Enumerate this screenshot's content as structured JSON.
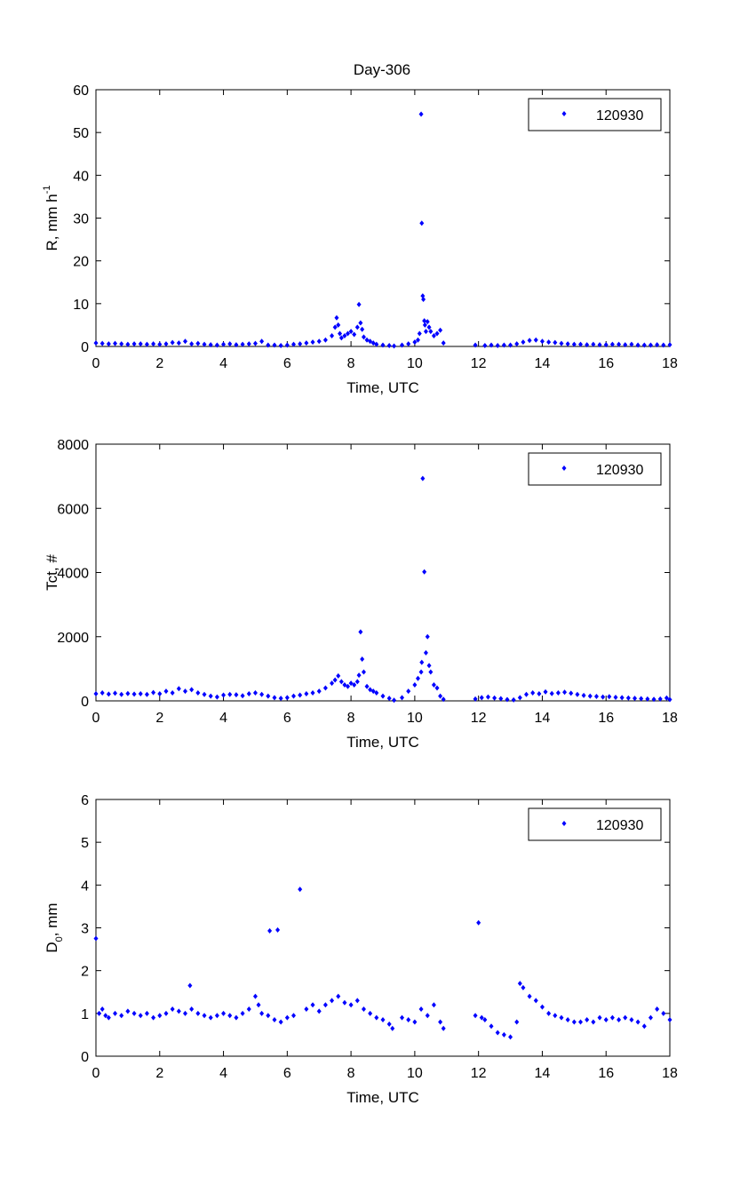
{
  "figure_title": "Day-306",
  "chart_data": [
    {
      "type": "scatter",
      "title": "Day-306",
      "xlabel": "Time, UTC",
      "ylabel_main": "R, mm h",
      "ylabel_sup": "-1",
      "xlim": [
        0,
        18
      ],
      "ylim": [
        0,
        60
      ],
      "xticks": [
        0,
        2,
        4,
        6,
        8,
        10,
        12,
        14,
        16,
        18
      ],
      "yticks": [
        0,
        10,
        20,
        30,
        40,
        50,
        60
      ],
      "grid": false,
      "legend_position": "top-right",
      "marker": "diamond",
      "color": "#0000ff",
      "series": [
        {
          "name": "120930",
          "x": [
            0.0,
            0.2,
            0.4,
            0.6,
            0.8,
            1.0,
            1.2,
            1.4,
            1.6,
            1.8,
            2.0,
            2.2,
            2.4,
            2.6,
            2.8,
            3.0,
            3.2,
            3.4,
            3.6,
            3.8,
            4.0,
            4.2,
            4.4,
            4.6,
            4.8,
            5.0,
            5.2,
            5.4,
            5.6,
            5.8,
            6.0,
            6.2,
            6.4,
            6.6,
            6.8,
            7.0,
            7.2,
            7.4,
            7.5,
            7.55,
            7.6,
            7.65,
            7.7,
            7.8,
            7.9,
            8.0,
            8.1,
            8.2,
            8.25,
            8.3,
            8.35,
            8.4,
            8.5,
            8.6,
            8.7,
            8.8,
            9.0,
            9.2,
            9.35,
            9.6,
            9.8,
            10.0,
            10.1,
            10.15,
            10.2,
            10.22,
            10.25,
            10.27,
            10.3,
            10.32,
            10.35,
            10.4,
            10.45,
            10.5,
            10.6,
            10.7,
            10.8,
            10.9,
            11.9,
            12.2,
            12.4,
            12.6,
            12.8,
            13.0,
            13.2,
            13.4,
            13.6,
            13.8,
            14.0,
            14.2,
            14.4,
            14.6,
            14.8,
            15.0,
            15.2,
            15.4,
            15.6,
            15.8,
            16.0,
            16.2,
            16.4,
            16.6,
            16.8,
            17.0,
            17.2,
            17.4,
            17.6,
            17.8,
            18.0
          ],
          "y": [
            0.8,
            0.7,
            0.6,
            0.7,
            0.6,
            0.5,
            0.6,
            0.6,
            0.5,
            0.6,
            0.5,
            0.6,
            0.9,
            0.8,
            1.2,
            0.6,
            0.7,
            0.5,
            0.4,
            0.3,
            0.5,
            0.6,
            0.4,
            0.5,
            0.6,
            0.7,
            1.2,
            0.3,
            0.3,
            0.2,
            0.3,
            0.5,
            0.6,
            0.8,
            1.0,
            1.2,
            1.5,
            2.5,
            4.5,
            6.7,
            5.0,
            3.0,
            2.0,
            2.5,
            3.0,
            3.5,
            2.8,
            4.5,
            9.8,
            5.5,
            4.0,
            2.2,
            1.5,
            1.2,
            0.8,
            0.5,
            0.3,
            0.2,
            0.1,
            0.3,
            0.6,
            1.0,
            1.5,
            3.0,
            54.3,
            28.8,
            11.8,
            11.0,
            6.0,
            5.0,
            3.5,
            5.8,
            4.5,
            3.5,
            2.5,
            3.0,
            3.8,
            0.8,
            0.3,
            0.2,
            0.3,
            0.2,
            0.3,
            0.3,
            0.6,
            1.0,
            1.4,
            1.5,
            1.2,
            1.0,
            0.9,
            0.7,
            0.6,
            0.5,
            0.5,
            0.4,
            0.5,
            0.4,
            0.4,
            0.5,
            0.5,
            0.4,
            0.5,
            0.3,
            0.3,
            0.3,
            0.4,
            0.3,
            0.4
          ]
        }
      ]
    },
    {
      "type": "scatter",
      "title": "",
      "xlabel": "Time, UTC",
      "ylabel_main": "Tct, #",
      "ylabel_sup": "",
      "xlim": [
        0,
        18
      ],
      "ylim": [
        0,
        8000
      ],
      "xticks": [
        0,
        2,
        4,
        6,
        8,
        10,
        12,
        14,
        16,
        18
      ],
      "yticks": [
        0,
        2000,
        4000,
        6000,
        8000
      ],
      "grid": false,
      "legend_position": "top-right",
      "marker": "diamond",
      "color": "#0000ff",
      "series": [
        {
          "name": "120930",
          "x": [
            0.0,
            0.2,
            0.4,
            0.6,
            0.8,
            1.0,
            1.2,
            1.4,
            1.6,
            1.8,
            2.0,
            2.2,
            2.4,
            2.6,
            2.8,
            3.0,
            3.2,
            3.4,
            3.6,
            3.8,
            4.0,
            4.2,
            4.4,
            4.6,
            4.8,
            5.0,
            5.2,
            5.4,
            5.6,
            5.8,
            6.0,
            6.2,
            6.4,
            6.6,
            6.8,
            7.0,
            7.2,
            7.4,
            7.5,
            7.6,
            7.7,
            7.8,
            7.9,
            8.0,
            8.1,
            8.2,
            8.25,
            8.3,
            8.35,
            8.4,
            8.5,
            8.6,
            8.7,
            8.8,
            9.0,
            9.2,
            9.35,
            9.6,
            9.8,
            10.0,
            10.1,
            10.2,
            10.22,
            10.25,
            10.3,
            10.35,
            10.4,
            10.45,
            10.5,
            10.6,
            10.7,
            10.8,
            10.9,
            11.9,
            12.1,
            12.3,
            12.5,
            12.7,
            12.9,
            13.1,
            13.3,
            13.5,
            13.7,
            13.9,
            14.1,
            14.3,
            14.5,
            14.7,
            14.9,
            15.1,
            15.3,
            15.5,
            15.7,
            15.9,
            16.1,
            16.3,
            16.5,
            16.7,
            16.9,
            17.1,
            17.3,
            17.5,
            17.7,
            17.9,
            18.0
          ],
          "y": [
            220,
            250,
            210,
            240,
            200,
            230,
            210,
            220,
            200,
            260,
            220,
            300,
            250,
            380,
            300,
            350,
            250,
            200,
            150,
            120,
            180,
            200,
            190,
            160,
            220,
            250,
            200,
            150,
            100,
            80,
            100,
            150,
            180,
            220,
            250,
            300,
            400,
            550,
            650,
            780,
            600,
            500,
            450,
            550,
            500,
            600,
            800,
            2150,
            1300,
            900,
            450,
            350,
            300,
            250,
            150,
            80,
            20,
            100,
            300,
            500,
            700,
            900,
            1200,
            6930,
            4020,
            1500,
            2000,
            1100,
            900,
            500,
            400,
            150,
            50,
            60,
            100,
            120,
            90,
            70,
            40,
            30,
            100,
            200,
            250,
            220,
            280,
            230,
            250,
            270,
            240,
            200,
            170,
            150,
            140,
            120,
            130,
            110,
            100,
            90,
            80,
            70,
            60,
            50,
            60,
            90,
            40
          ]
        }
      ]
    },
    {
      "type": "scatter",
      "title": "",
      "xlabel": "Time, UTC",
      "ylabel_main": "D",
      "ylabel_sub": "0",
      "ylabel_tail": ", mm",
      "xlim": [
        0,
        18
      ],
      "ylim": [
        0,
        6
      ],
      "xticks": [
        0,
        2,
        4,
        6,
        8,
        10,
        12,
        14,
        16,
        18
      ],
      "yticks": [
        0,
        1,
        2,
        3,
        4,
        5,
        6
      ],
      "grid": false,
      "legend_position": "top-right",
      "marker": "diamond",
      "color": "#0000ff",
      "series": [
        {
          "name": "120930",
          "x": [
            0.0,
            0.1,
            0.2,
            0.3,
            0.4,
            0.6,
            0.8,
            1.0,
            1.2,
            1.4,
            1.6,
            1.8,
            2.0,
            2.2,
            2.4,
            2.6,
            2.8,
            2.95,
            3.0,
            3.2,
            3.4,
            3.6,
            3.8,
            4.0,
            4.2,
            4.4,
            4.6,
            4.8,
            5.0,
            5.1,
            5.2,
            5.4,
            5.45,
            5.6,
            5.7,
            5.8,
            6.0,
            6.2,
            6.4,
            6.6,
            6.8,
            7.0,
            7.2,
            7.4,
            7.6,
            7.8,
            8.0,
            8.2,
            8.4,
            8.6,
            8.8,
            9.0,
            9.2,
            9.3,
            9.6,
            9.8,
            10.0,
            10.2,
            10.4,
            10.6,
            10.8,
            10.9,
            11.9,
            12.0,
            12.1,
            12.2,
            12.4,
            12.6,
            12.8,
            13.0,
            13.2,
            13.3,
            13.4,
            13.6,
            13.8,
            14.0,
            14.2,
            14.4,
            14.6,
            14.8,
            15.0,
            15.2,
            15.4,
            15.6,
            15.8,
            16.0,
            16.2,
            16.4,
            16.6,
            16.8,
            17.0,
            17.2,
            17.4,
            17.6,
            17.8,
            18.0
          ],
          "y": [
            2.75,
            1.0,
            1.1,
            0.95,
            0.9,
            1.0,
            0.95,
            1.05,
            1.0,
            0.95,
            1.0,
            0.9,
            0.95,
            1.0,
            1.1,
            1.05,
            1.0,
            1.65,
            1.1,
            1.0,
            0.95,
            0.9,
            0.95,
            1.0,
            0.95,
            0.9,
            1.0,
            1.1,
            1.4,
            1.2,
            1.0,
            0.95,
            2.93,
            0.85,
            2.95,
            0.8,
            0.9,
            0.95,
            3.9,
            1.1,
            1.2,
            1.05,
            1.2,
            1.3,
            1.4,
            1.25,
            1.2,
            1.3,
            1.1,
            1.0,
            0.9,
            0.85,
            0.75,
            0.65,
            0.9,
            0.85,
            0.8,
            1.1,
            0.95,
            1.2,
            0.8,
            0.65,
            0.95,
            3.12,
            0.9,
            0.85,
            0.7,
            0.55,
            0.5,
            0.45,
            0.8,
            1.7,
            1.6,
            1.4,
            1.3,
            1.15,
            1.0,
            0.95,
            0.9,
            0.85,
            0.8,
            0.8,
            0.85,
            0.8,
            0.9,
            0.85,
            0.9,
            0.85,
            0.9,
            0.85,
            0.8,
            0.7,
            0.9,
            1.1,
            1.0,
            0.85
          ]
        }
      ]
    }
  ]
}
